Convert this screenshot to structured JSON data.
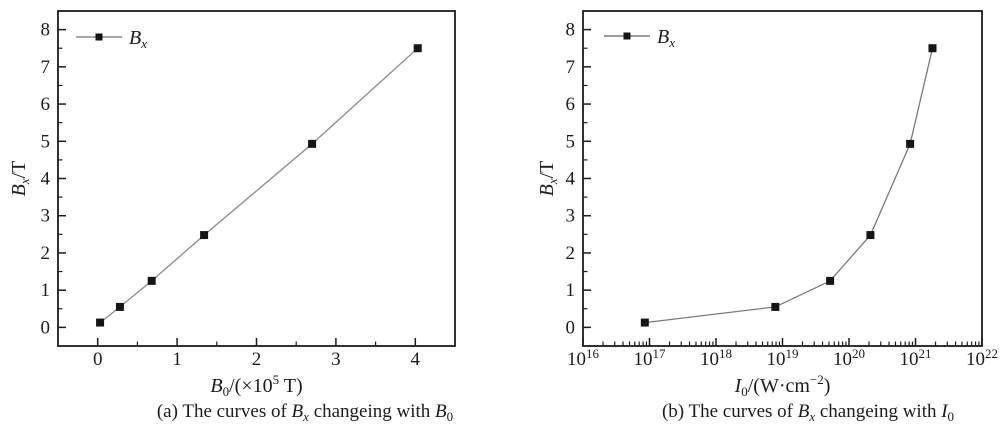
{
  "page": {
    "background": "#ffffff",
    "text_color": "#1c1c1c",
    "axis_color": "#1c1c1c"
  },
  "chart_data": [
    {
      "id": "a",
      "type": "line",
      "xscale": "linear",
      "title": "",
      "xlabel": "B0/(×10^5 T)",
      "ylabel": "Bx/T",
      "legend": [
        "Bx"
      ],
      "legend_position": "top-left inside",
      "grid": false,
      "caption": "(a) The curves of Bx changeing with B0",
      "x": [
        0.03,
        0.28,
        0.68,
        1.34,
        2.7,
        4.03
      ],
      "y": [
        0.13,
        0.55,
        1.25,
        2.48,
        4.93,
        7.5
      ],
      "xlim": [
        -0.5,
        4.5
      ],
      "ylim": [
        -0.5,
        8.5
      ],
      "xticks": [
        0,
        1,
        2,
        3,
        4
      ],
      "xminor_step": 0.5,
      "yticks": [
        0,
        1,
        2,
        3,
        4,
        5,
        6,
        7,
        8
      ],
      "yminor_step": 0.5,
      "marker": "square",
      "line_color": "#8a8a8a",
      "marker_color": "#151515",
      "rich": {
        "xlabel": [
          [
            "B",
            "i"
          ],
          [
            "0",
            "sub"
          ],
          [
            "/(×10",
            "n"
          ],
          [
            "5",
            "sup"
          ],
          [
            " T)",
            "n"
          ]
        ],
        "ylabel": [
          [
            "B",
            "i"
          ],
          [
            "x",
            "isub"
          ],
          [
            "/T",
            "n"
          ]
        ],
        "legend": [
          [
            "B",
            "i"
          ],
          [
            "x",
            "isub"
          ]
        ],
        "caption": [
          [
            "(a) The curves of ",
            "n"
          ],
          [
            "B",
            "i"
          ],
          [
            "x",
            "isub"
          ],
          [
            " changeing with ",
            "n"
          ],
          [
            "B",
            "i"
          ],
          [
            "0",
            "sub"
          ]
        ]
      }
    },
    {
      "id": "b",
      "type": "line",
      "xscale": "log",
      "title": "",
      "xlabel": "I0/(W·cm−2)",
      "ylabel": "Bx/T",
      "legend": [
        "Bx"
      ],
      "legend_position": "top-left inside",
      "grid": false,
      "caption": "(b) The curves of Bx changeing with I0",
      "x": [
        8.5e+16,
        7.8e+18,
        5.2e+19,
        2.1e+20,
        8.3e+20,
        1.8e+21
      ],
      "y": [
        0.13,
        0.55,
        1.25,
        2.48,
        4.93,
        7.5
      ],
      "xlim": [
        1e+16,
        1e+22
      ],
      "ylim": [
        -0.5,
        8.5
      ],
      "xtick_exponents": [
        16,
        17,
        18,
        19,
        20,
        21,
        22
      ],
      "yticks": [
        0,
        1,
        2,
        3,
        4,
        5,
        6,
        7,
        8
      ],
      "yminor_step": 0.5,
      "marker": "square",
      "line_color": "#7a7a7a",
      "marker_color": "#151515",
      "rich": {
        "xlabel": [
          [
            "I",
            "i"
          ],
          [
            "0",
            "sub"
          ],
          [
            "/(W·cm",
            "n"
          ],
          [
            "−2",
            "sup"
          ],
          [
            ")",
            "n"
          ]
        ],
        "ylabel": [
          [
            "B",
            "i"
          ],
          [
            "x",
            "isub"
          ],
          [
            "/T",
            "n"
          ]
        ],
        "legend": [
          [
            "B",
            "i"
          ],
          [
            "x",
            "isub"
          ]
        ],
        "caption": [
          [
            "(b) The curves of ",
            "n"
          ],
          [
            "B",
            "i"
          ],
          [
            "x",
            "isub"
          ],
          [
            " changeing with ",
            "n"
          ],
          [
            "I",
            "i"
          ],
          [
            "0",
            "sub"
          ]
        ]
      }
    }
  ]
}
